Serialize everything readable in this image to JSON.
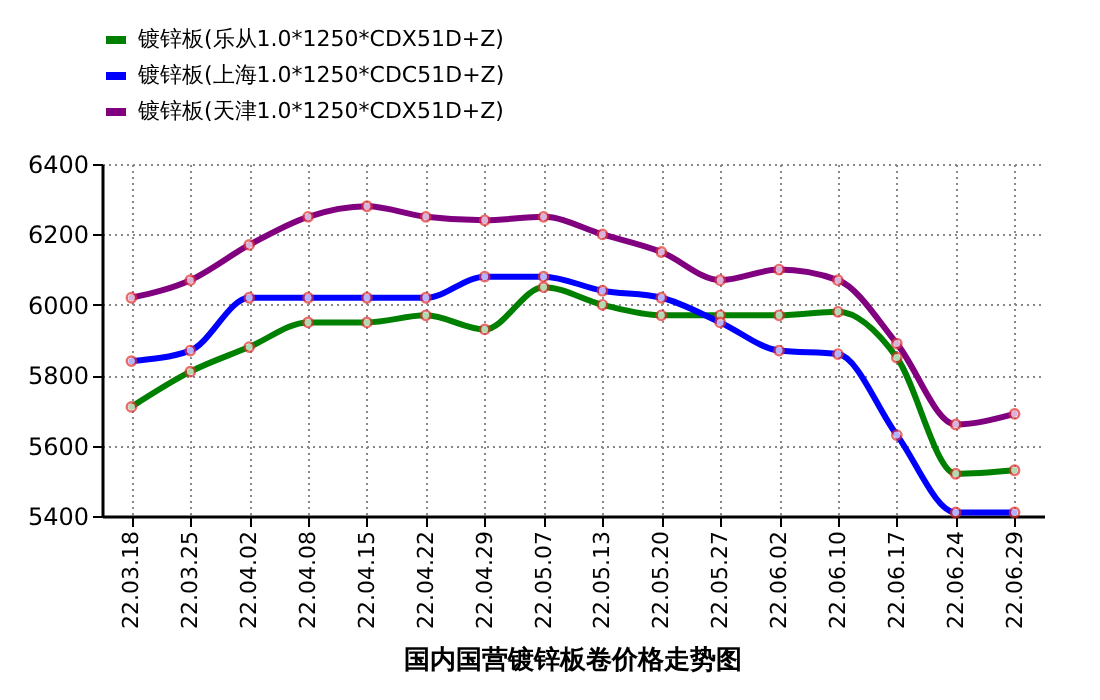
{
  "chart_data": {
    "type": "line",
    "title": "国内国营镀锌板卷价格走势图",
    "categories": [
      "22.03.18",
      "22.03.25",
      "22.04.02",
      "22.04.08",
      "22.04.15",
      "22.04.22",
      "22.04.29",
      "22.05.07",
      "22.05.13",
      "22.05.20",
      "22.05.27",
      "22.06.02",
      "22.06.10",
      "22.06.17",
      "22.06.24",
      "22.06.29"
    ],
    "series": [
      {
        "name": "镀锌板(乐从1.0*1250*CDX51D+Z)",
        "color": "#008000",
        "values": [
          5710,
          5810,
          5880,
          5950,
          5950,
          5970,
          5930,
          6050,
          6000,
          5970,
          5970,
          5970,
          5980,
          5850,
          5520,
          5530
        ]
      },
      {
        "name": "镀锌板(上海1.0*1250*CDC51D+Z)",
        "color": "#0000ff",
        "values": [
          5840,
          5870,
          6020,
          6020,
          6020,
          6020,
          6080,
          6080,
          6040,
          6020,
          5950,
          5870,
          5860,
          5630,
          5410,
          5410
        ]
      },
      {
        "name": "镀锌板(天津1.0*1250*CDX51D+Z)",
        "color": "#800080",
        "values": [
          6020,
          6070,
          6170,
          6250,
          6280,
          6250,
          6240,
          6250,
          6200,
          6150,
          6070,
          6100,
          6070,
          5890,
          5660,
          5690
        ]
      }
    ],
    "ylim": [
      5400,
      6400
    ],
    "yticks": [
      5400,
      5600,
      5800,
      6000,
      6200,
      6400
    ],
    "grid": true,
    "legend": "top",
    "marker": "circle",
    "line_style": "solid"
  }
}
